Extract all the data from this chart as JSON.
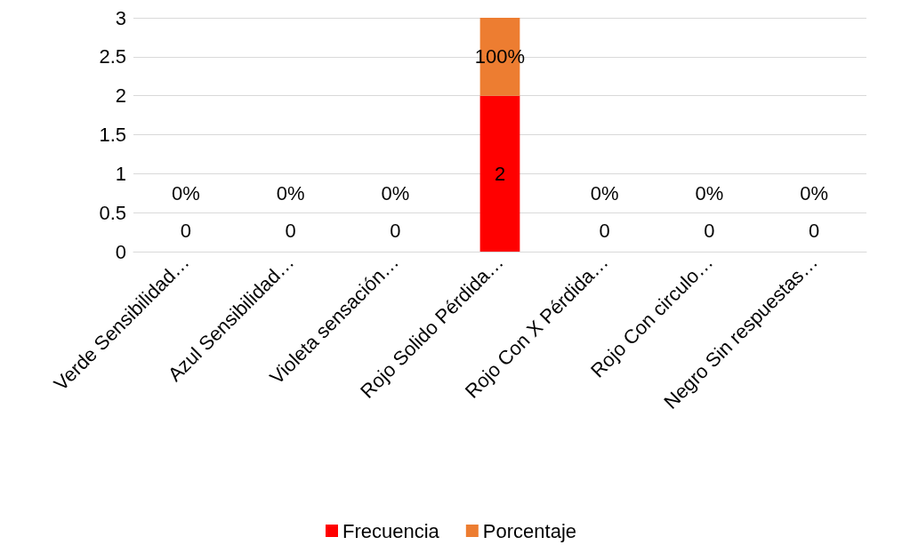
{
  "chart_data": {
    "type": "bar",
    "stacked": true,
    "categories": [
      "Verde Sensibilidad…",
      "Azul Sensibilidad…",
      "Violeta sensación…",
      "Rojo Solido Pérdida…",
      "Rojo Con X Pérdida…",
      "Rojo Con circulo…",
      "Negro Sin respuestas…"
    ],
    "series": [
      {
        "name": "Frecuencia",
        "color": "#ff0000",
        "colors": [
          "#375623",
          "#002060",
          "#7030a0",
          "#ff0000",
          "#c00000",
          "#c00000",
          "#000000"
        ],
        "values": [
          0,
          0,
          0,
          2,
          0,
          0,
          0
        ],
        "value_labels": [
          "0",
          "0",
          "0",
          "2",
          "0",
          "0",
          "0"
        ]
      },
      {
        "name": "Porcentaje",
        "color": "#ed7d31",
        "values": [
          0,
          0,
          0,
          1,
          0,
          0,
          0
        ],
        "value_labels": [
          "0%",
          "0%",
          "0%",
          "100%",
          "0%",
          "0%",
          "0%"
        ]
      }
    ],
    "ylim": [
      0,
      3
    ],
    "yticks": [
      0,
      0.5,
      1,
      1.5,
      2,
      2.5,
      3
    ],
    "grid": "y",
    "legend": "bottom"
  }
}
